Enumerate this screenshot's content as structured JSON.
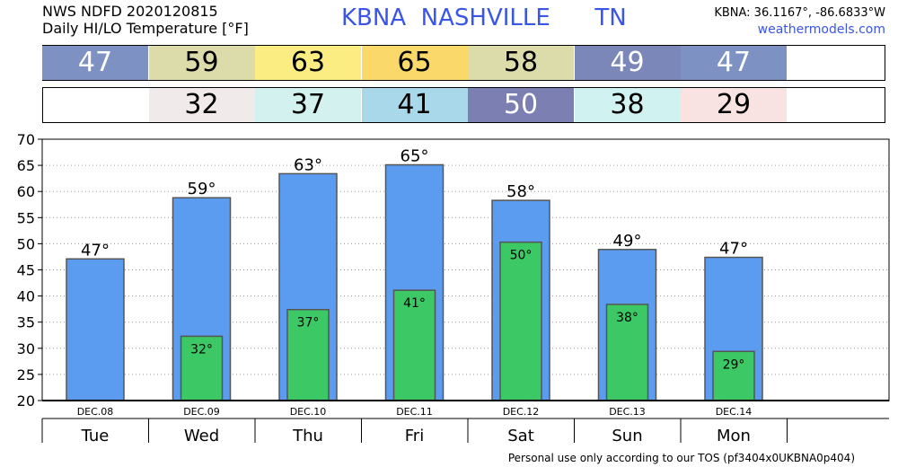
{
  "header": {
    "line1": "NWS NDFD 2020120815",
    "line2": "Daily HI/LO Temperature [°F]",
    "station": "KBNA  NASHVILLE      TN",
    "coords": "KBNA: 36.1167°, -86.6833°W",
    "site": "weathermodels.com"
  },
  "footer": "Personal use only according to our TOS (pf3404x0UKBNA0p404)",
  "colors": {
    "high_bar": "#5b9cf0",
    "low_bar": "#3cc864",
    "bar_border": "#555555",
    "high_strip": [
      "#7d91c3",
      "#dcdbaa",
      "#fbed82",
      "#fad86a",
      "#dcdbaa",
      "#7c87b9",
      "#7d91c3"
    ],
    "low_strip": [
      null,
      "#f0ebea",
      "#d3f1ee",
      "#a8d8ea",
      "#7c7fb2",
      "#d0f3f2",
      "#f9e2e2"
    ]
  },
  "chart_data": {
    "type": "bar",
    "x": [
      "DEC.08",
      "DEC.09",
      "DEC.10",
      "DEC.11",
      "DEC.12",
      "DEC.13",
      "DEC.14"
    ],
    "categories": [
      "Tue",
      "Wed",
      "Thu",
      "Fri",
      "Sat",
      "Sun",
      "Mon"
    ],
    "series": [
      {
        "values": [
          47,
          59,
          63,
          65,
          58,
          49,
          47
        ]
      },
      {
        "values": [
          null,
          32,
          37,
          41,
          50,
          38,
          29
        ]
      }
    ],
    "high_labels": [
      "47°",
      "59°",
      "63°",
      "65°",
      "58°",
      "49°",
      "47°"
    ],
    "low_labels": [
      null,
      "32°",
      "37°",
      "41°",
      "50°",
      "38°",
      "29°"
    ],
    "strip_high": [
      "47",
      "59",
      "63",
      "65",
      "58",
      "49",
      "47"
    ],
    "strip_low": [
      null,
      "32",
      "37",
      "41",
      "50",
      "38",
      "29"
    ],
    "plot_values": {
      "high": [
        47.1,
        58.8,
        63.4,
        65.1,
        58.3,
        48.9,
        47.4
      ],
      "low": [
        null,
        32.3,
        37.4,
        41.1,
        50.3,
        38.4,
        29.4
      ]
    },
    "ylim": [
      20,
      70
    ],
    "yticks": [
      20,
      25,
      30,
      35,
      40,
      45,
      50,
      55,
      60,
      65,
      70
    ],
    "grid": true
  }
}
